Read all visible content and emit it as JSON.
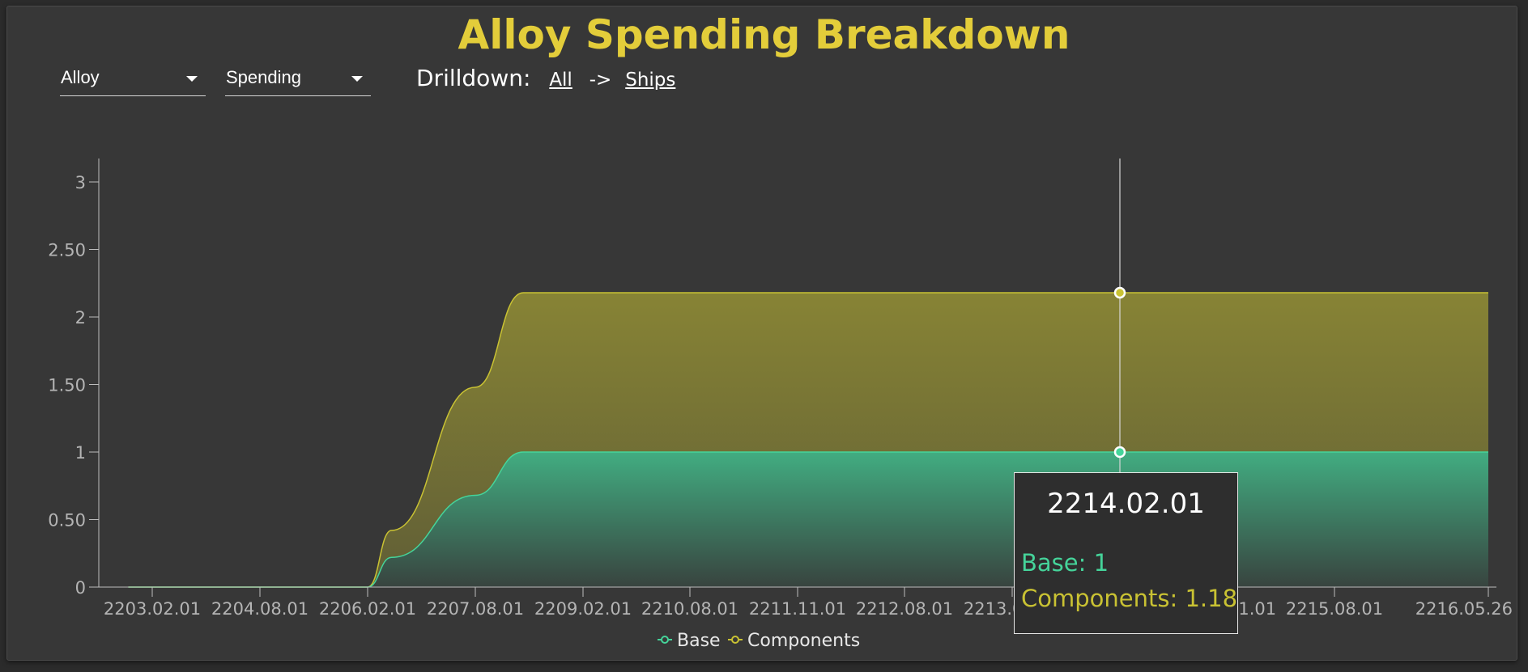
{
  "header": {
    "title": "Alloy Spending Breakdown"
  },
  "controls": {
    "resource_select": "Alloy",
    "metric_select": "Spending",
    "drilldown_label": "Drilldown:",
    "drilldown_path": [
      "All",
      "Ships"
    ],
    "drilldown_separator": "->"
  },
  "colors": {
    "base": "#45d49a",
    "components": "#c9c233",
    "title": "#e3cd3a"
  },
  "chart_data": {
    "type": "area",
    "stacked": true,
    "title": "Alloy Spending Breakdown",
    "x_tick_labels": [
      "2203.02.01",
      "2204.08.01",
      "2206.02.01",
      "2207.08.01",
      "2209.02.01",
      "2210.08.01",
      "2211.11.01",
      "2212.08.01",
      "2213.05.01",
      "2214.02.01",
      "2214.11.01",
      "2215.08.01",
      "2216.05.26"
    ],
    "y_tick_labels": [
      "0",
      "0.50",
      "1",
      "1.50",
      "2",
      "2.50",
      "3"
    ],
    "ylim": [
      0,
      3.2
    ],
    "x": [
      "2202.10.01",
      "2206.02.01",
      "2206.06.01",
      "2207.08.01",
      "2208.04.01",
      "2216.05.26"
    ],
    "series": [
      {
        "name": "Base",
        "values": [
          0,
          0,
          0.22,
          0.68,
          1,
          1
        ]
      },
      {
        "name": "Components",
        "values": [
          0,
          0,
          0.2,
          0.8,
          1.18,
          1.18
        ]
      }
    ],
    "legend": {
      "position": "bottom-center",
      "entries": [
        "Base",
        "Components"
      ]
    },
    "grid": false
  },
  "tooltip": {
    "date": "2214.02.01",
    "rows": [
      "Base: 1",
      "Components: 1.18"
    ]
  }
}
